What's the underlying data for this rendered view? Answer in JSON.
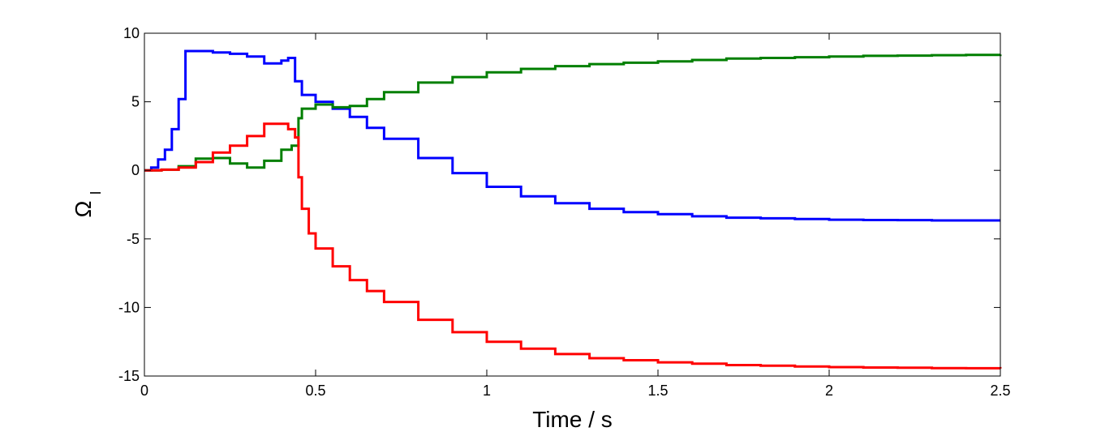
{
  "chart_data": {
    "type": "line",
    "xlabel": "Time / s",
    "ylabel": "Ω",
    "ylabel_subscript": "I",
    "xlim": [
      0,
      2.5
    ],
    "ylim": [
      -15,
      10
    ],
    "xticks": [
      0,
      0.5,
      1,
      1.5,
      2,
      2.5
    ],
    "xtick_labels": [
      "0",
      "0.5",
      "1",
      "1.5",
      "2",
      "2.5"
    ],
    "yticks": [
      -15,
      -10,
      -5,
      0,
      5,
      10
    ],
    "ytick_labels": [
      "-15",
      "-10",
      "-5",
      "0",
      "5",
      "10"
    ],
    "grid": false,
    "legend": "none",
    "series": [
      {
        "color": "#0000ff",
        "x": [
          0,
          0.02,
          0.04,
          0.06,
          0.08,
          0.1,
          0.12,
          0.15,
          0.2,
          0.25,
          0.3,
          0.35,
          0.4,
          0.42,
          0.44,
          0.46,
          0.5,
          0.55,
          0.6,
          0.65,
          0.7,
          0.8,
          0.9,
          1.0,
          1.1,
          1.2,
          1.3,
          1.4,
          1.5,
          1.6,
          1.7,
          1.8,
          1.9,
          2.0,
          2.1,
          2.2,
          2.3,
          2.4,
          2.5
        ],
        "y": [
          0,
          0.2,
          0.8,
          1.5,
          3.0,
          5.2,
          8.7,
          8.7,
          8.6,
          8.5,
          8.3,
          7.8,
          8.0,
          8.2,
          6.5,
          5.5,
          5.0,
          4.5,
          3.9,
          3.1,
          2.3,
          0.9,
          -0.2,
          -1.2,
          -1.9,
          -2.4,
          -2.8,
          -3.05,
          -3.2,
          -3.35,
          -3.45,
          -3.5,
          -3.55,
          -3.6,
          -3.62,
          -3.63,
          -3.65,
          -3.65,
          -3.65
        ]
      },
      {
        "color": "#007f00",
        "x": [
          0,
          0.05,
          0.1,
          0.15,
          0.2,
          0.25,
          0.3,
          0.35,
          0.4,
          0.43,
          0.45,
          0.46,
          0.5,
          0.55,
          0.6,
          0.65,
          0.7,
          0.8,
          0.9,
          1.0,
          1.1,
          1.2,
          1.3,
          1.4,
          1.5,
          1.6,
          1.7,
          1.8,
          1.9,
          2.0,
          2.1,
          2.2,
          2.3,
          2.4,
          2.5
        ],
        "y": [
          0,
          0.05,
          0.3,
          0.85,
          0.9,
          0.5,
          0.2,
          0.7,
          1.5,
          1.8,
          3.8,
          4.5,
          4.8,
          4.6,
          4.7,
          5.2,
          5.7,
          6.4,
          6.8,
          7.15,
          7.4,
          7.6,
          7.75,
          7.85,
          7.95,
          8.05,
          8.15,
          8.2,
          8.25,
          8.3,
          8.35,
          8.37,
          8.4,
          8.42,
          8.45
        ]
      },
      {
        "color": "#ff0000",
        "x": [
          0,
          0.05,
          0.1,
          0.15,
          0.2,
          0.25,
          0.3,
          0.35,
          0.38,
          0.42,
          0.44,
          0.45,
          0.46,
          0.48,
          0.5,
          0.55,
          0.6,
          0.65,
          0.7,
          0.8,
          0.9,
          1.0,
          1.1,
          1.2,
          1.3,
          1.4,
          1.5,
          1.6,
          1.7,
          1.8,
          1.9,
          2.0,
          2.1,
          2.2,
          2.3,
          2.4,
          2.5
        ],
        "y": [
          0,
          0.05,
          0.2,
          0.6,
          1.3,
          1.8,
          2.5,
          3.4,
          3.4,
          3.0,
          2.4,
          -0.5,
          -2.8,
          -4.6,
          -5.7,
          -7.0,
          -8.0,
          -8.8,
          -9.6,
          -10.9,
          -11.8,
          -12.5,
          -13.0,
          -13.4,
          -13.7,
          -13.85,
          -14.0,
          -14.1,
          -14.2,
          -14.25,
          -14.3,
          -14.35,
          -14.38,
          -14.4,
          -14.42,
          -14.43,
          -14.45
        ]
      }
    ]
  }
}
